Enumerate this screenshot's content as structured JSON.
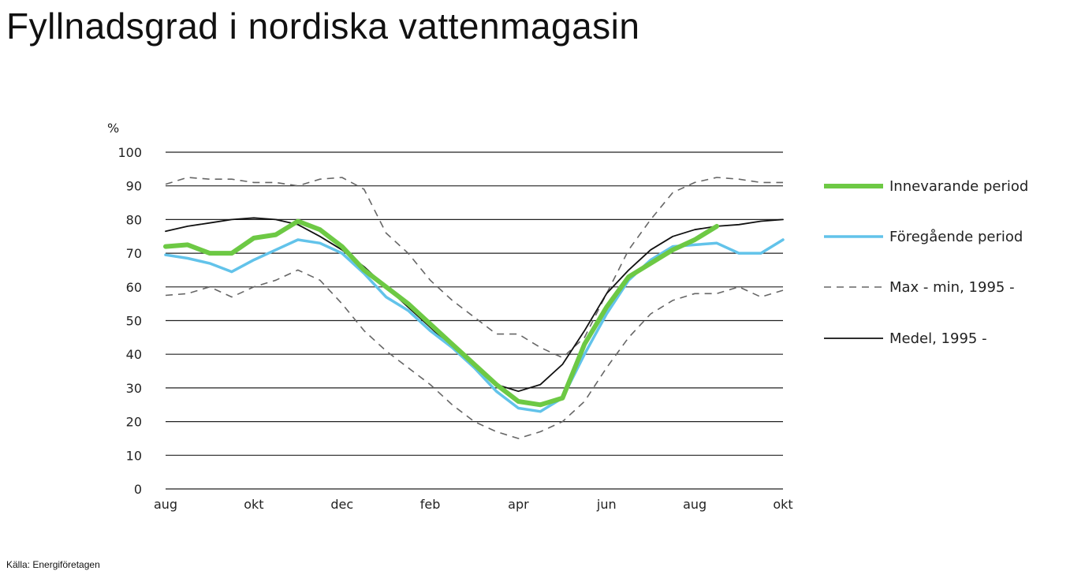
{
  "title": "Fyllnadsgrad i nordiska vattenmagasin",
  "source": "Källa: Energiföretagen",
  "chart_data": {
    "type": "line",
    "ylabel": "%",
    "ylim": [
      0,
      100
    ],
    "y_ticks": [
      "0",
      "10",
      "20",
      "30",
      "40",
      "50",
      "60",
      "70",
      "80",
      "90",
      "100"
    ],
    "x_ticks": [
      "aug",
      "okt",
      "dec",
      "feb",
      "apr",
      "jun",
      "aug",
      "okt"
    ],
    "xlim": [
      0,
      14
    ],
    "grid": true,
    "legend_position": "right",
    "series": [
      {
        "name": "Max - min, 1995 -",
        "role": "max",
        "color": "#666666",
        "style": "dashed",
        "x": [
          0,
          0.5,
          1,
          1.5,
          2,
          2.5,
          3,
          3.5,
          4,
          4.5,
          5,
          5.5,
          6,
          6.5,
          7,
          7.5,
          8,
          8.5,
          9,
          9.5,
          10,
          10.5,
          11,
          11.5,
          12,
          12.5,
          13,
          13.5,
          14
        ],
        "values": [
          90.5,
          92.5,
          92,
          92,
          91,
          91,
          90,
          92,
          92.5,
          89,
          76,
          70,
          62,
          56,
          51,
          46,
          46,
          42,
          39,
          45,
          58,
          71,
          80,
          88,
          91,
          92.5,
          92,
          91,
          91
        ]
      },
      {
        "name": "Max - min, 1995 -",
        "role": "min",
        "color": "#666666",
        "style": "dashed",
        "x": [
          0,
          0.5,
          1,
          1.5,
          2,
          2.5,
          3,
          3.5,
          4,
          4.5,
          5,
          5.5,
          6,
          6.5,
          7,
          7.5,
          8,
          8.5,
          9,
          9.5,
          10,
          10.5,
          11,
          11.5,
          12,
          12.5,
          13,
          13.5,
          14
        ],
        "values": [
          57.5,
          58,
          60,
          57,
          60,
          62,
          65,
          62,
          55,
          47,
          41,
          36,
          31,
          25,
          20,
          17,
          15,
          17,
          20,
          26,
          36,
          45,
          52,
          56,
          58,
          58,
          60,
          57,
          59
        ]
      },
      {
        "name": "Medel, 1995 -",
        "color": "#111111",
        "style": "solid",
        "x": [
          0,
          0.5,
          1,
          1.5,
          2,
          2.5,
          3,
          3.5,
          4,
          4.5,
          5,
          5.5,
          6,
          6.5,
          7,
          7.5,
          8,
          8.5,
          9,
          9.5,
          10,
          10.5,
          11,
          11.5,
          12,
          12.5,
          13,
          13.5,
          14
        ],
        "values": [
          76.5,
          78,
          79,
          80,
          80.5,
          80,
          78.5,
          75,
          71,
          66,
          60,
          54,
          48,
          42,
          36,
          31,
          29,
          31,
          37,
          47,
          58,
          65,
          71,
          75,
          77,
          78,
          78.5,
          79.5,
          80
        ]
      },
      {
        "name": "Föregående period",
        "color": "#62c3ea",
        "style": "solid",
        "x": [
          0,
          0.5,
          1,
          1.5,
          2,
          2.5,
          3,
          3.5,
          4,
          4.5,
          5,
          5.5,
          6,
          6.5,
          7,
          7.5,
          8,
          8.5,
          9,
          9.5,
          10,
          10.5,
          11,
          11.5,
          12,
          12.5,
          13,
          13.5,
          14
        ],
        "values": [
          69.5,
          68.5,
          67,
          64.5,
          68,
          71,
          74,
          73,
          70,
          64,
          57,
          53,
          47,
          42,
          36,
          29,
          24,
          23,
          27,
          40,
          52,
          62,
          68,
          72,
          72.5,
          73,
          70,
          70,
          74
        ]
      },
      {
        "name": "Innevarande period",
        "color": "#6dc944",
        "style": "solid",
        "x": [
          0,
          0.5,
          1,
          1.5,
          2,
          2.5,
          3,
          3.5,
          4,
          4.5,
          5,
          5.5,
          6,
          6.5,
          7,
          7.5,
          8,
          8.5,
          9,
          9.5,
          10,
          10.5,
          11,
          11.5,
          12,
          12.5
        ],
        "values": [
          72,
          72.5,
          70,
          70,
          74.5,
          75.5,
          79.5,
          77,
          72,
          65,
          60,
          55,
          49,
          43,
          37,
          31,
          26,
          25,
          27,
          43,
          54,
          63,
          67,
          71,
          74,
          78
        ]
      }
    ]
  }
}
